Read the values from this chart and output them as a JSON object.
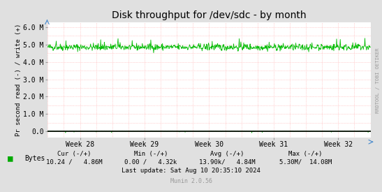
{
  "title": "Disk throughput for /dev/sdc - by month",
  "ylabel": "Pr second read (-) / write (+)",
  "ylabel_right": "RRDTOOL / TOBI OETIKER",
  "x_tick_labels": [
    "Week 28",
    "Week 29",
    "Week 30",
    "Week 31",
    "Week 32"
  ],
  "ylim": [
    -350000.0,
    6300000.0
  ],
  "yticks": [
    0,
    1000000.0,
    2000000.0,
    3000000.0,
    4000000.0,
    5000000.0,
    6000000.0
  ],
  "ytick_labels": [
    "0.0",
    "1.0 M",
    "2.0 M",
    "3.0 M",
    "4.0 M",
    "5.0 M",
    "6.0 M"
  ],
  "bg_color": "#e0e0e0",
  "plot_bg_color": "#ffffff",
  "grid_h_color": "#ffaaaa",
  "grid_v_color": "#ffaaaa",
  "line_color": "#00bb00",
  "legend_color": "#00aa00",
  "legend_label": "Bytes",
  "footer_cur_label": "Cur (-/+)",
  "footer_min_label": "Min (-/+)",
  "footer_avg_label": "Avg (-/+)",
  "footer_max_label": "Max (-/+)",
  "footer_cur_val": "10.24 /   4.86M",
  "footer_min_val": "0.00 /   4.32k",
  "footer_avg_val": "13.90k/   4.84M",
  "footer_max_val": "5.30M/  14.08M",
  "footer_last_update": "Last update: Sat Aug 10 20:35:10 2024",
  "footer_munin": "Munin 2.0.56",
  "n_points": 800,
  "write_base": 4850000,
  "write_noise": 100000,
  "write_spike_prob": 0.03,
  "write_spike_amp": 500000,
  "read_noise": 5000,
  "read_spike_prob": 0.025,
  "read_spike_amp": -90000,
  "n_vgrid": 20,
  "n_hgrid_minor": 5
}
